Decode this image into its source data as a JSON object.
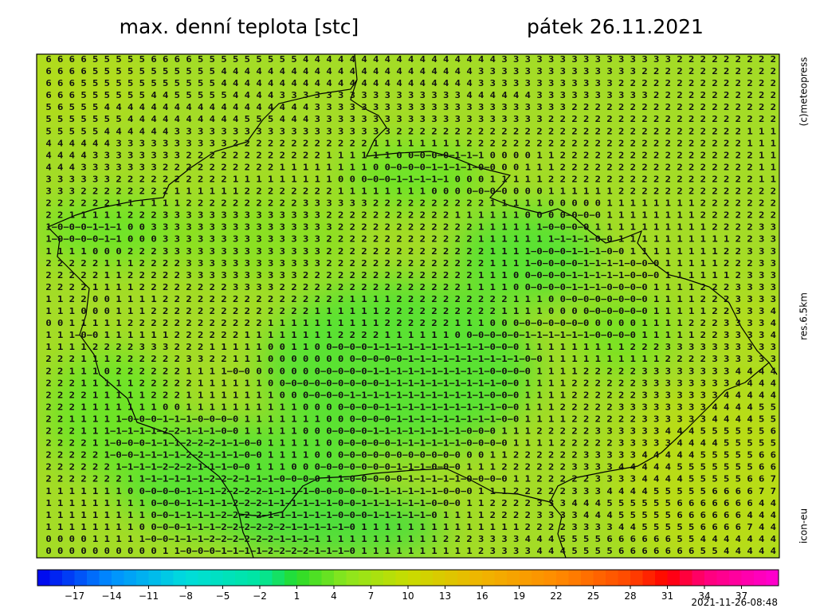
{
  "header": {
    "title": "max. denní teplota [stc]",
    "date": "pátek 26.11.2021"
  },
  "credits": {
    "source": "(c)meteopress",
    "resolution": "res.6.5km",
    "model": "icon-eu",
    "timestamp": "2021-11-26-08:48"
  },
  "grid": {
    "rows": [
      " 6 6 6 6 5 5 5 5 5 6 6 6 6 5 5 5 5 5 5 5 5 5 4 4 4 4 4 4 4 4 4 4 4 4 4 4 4 4 4 3 3 3 3 3 3 3 3 3 3 3 3 3 3 3 2 2 2 2 2 2 2 2 2",
      " 6 6 6 6 5 5 5 5 5 5 5 5 5 5 5 4 4 4 4 4 4 4 4 4 4 4 4 4 4 4 4 4 4 4 4 4 4 3 3 3 3 3 3 3 3 3 3 3 3 3 3 2 2 2 2 2 2 2 2 2 2 2 2",
      " 6 6 6 5 5 5 5 5 5 5 5 5 5 5 5 4 4 4 4 4 4 4 4 4 4 4 4 4 4 4 4 4 4 4 4 4 4 3 3 3 3 3 3 3 3 3 3 3 3 2 2 2 2 2 2 2 2 2 2 2 2 2 2",
      " 6 6 6 5 5 5 5 5 5 4 4 5 5 5 5 5 4 4 4 4 3 3 3 3 3 3 3 3 3 3 3 3 3 3 3 3 4 4 4 4 4 4 3 3 3 3 3 3 3 3 3 3 2 2 2 2 2 2 2 2 2 2 2",
      " 5 6 5 5 5 4 4 4 4 4 4 4 4 4 4 4 4 4 4 4 4 4 4 3 3 3 3 3 3 3 3 3 3 3 3 3 3 3 3 3 3 3 3 3 3 2 2 2 2 2 2 2 2 2 2 2 2 2 2 2 2 2 2",
      " 5 5 5 5 5 5 5 4 4 4 4 4 4 4 4 4 4 5 5 5 4 4 4 3 3 3 3 3 3 3 3 3 3 3 3 3 3 3 3 3 3 3 3 2 2 2 2 2 2 2 2 2 2 2 2 2 2 2 2 2 2 2 2",
      " 5 5 5 5 5 4 4 4 4 4 4 3 3 3 3 3 3 3 3 3 3 3 3 3 3 3 3 3 3 3 2 2 2 2 2 2 2 2 2 2 2 2 2 2 2 2 2 2 2 2 2 2 2 2 2 2 2 2 2 2 1 1 1",
      " 4 4 4 4 4 4 3 3 3 3 3 3 3 3 3 3 2 2 2 2 2 2 2 2 2 2 2 2 1 1 1 1 1 1 1 1 2 2 2 2 2 2 2 2 2 2 2 2 2 2 2 2 2 2 2 2 2 2 2 2 1 1 1",
      " 4 4 4 4 3 3 3 3 3 3 3 3 2 2 2 2 2 2 2 2 2 2 2 2 1 1 1 1 1 1 0 0−0−0−0−1−1−1 0 0 0 0 1 1 2 2 2 2 2 2 2 2 2 2 2 2 2 2 2 2 2 1 1",
      " 4 4 4 3 3 3 3 3 3 3 2 2 2 2 2 2 2 2 2 2 1 1 1 1 1 1 1 1 0 0−0−0−0−1−1−1−1−0−0 0 0 1 1 1 2 2 2 2 2 2 2 2 2 2 2 2 2 2 2 2 2 1 1",
      " 3 3 3 3 3 3 2 2 2 2 2 2 2 2 2 2 1 1 1 1 1 1 1 1 1 0 0 0−0−0−1−1−1−1−1 0 0 0 1 1 1 1 1 2 2 2 2 2 2 2 2 2 2 2 2 2 2 2 2 2 2 1 1",
      " 3 3 3 2 2 2 2 2 2 2 2 1 1 1 1 1 1 2 2 2 2 2 2 2 2 1 1 1 1 1 1 1 1 0 0 0 0−0−0−0 0 0 0 1 1 1 1 1 1 2 2 2 2 2 2 2 2 2 2 2 2 2 2",
      " 2 2 2 2 2 2 1 1 1 1 1 1 2 2 2 2 2 2 2 2 2 2 3 3 3 3 3 3 2 2 2 2 2 2 2 2 2 2 1 1 1 1 1 0 0 0 0 0 1 1 1 1 1 1 1 1 2 2 2 2 2 2 2",
      " 2 2 1 1 1 1 1 2 2 2 3 3 3 3 3 3 3 3 3 3 3 3 3 3 2 2 2 2 2 2 2 2 2 2 2 1 1 1 1 1 1 0 0 0 0−0−0−0 1 1 1 1 1 1 1 1 2 2 2 2 2 2 2",
      " 1−0−0−0−1−1−1 0 0 3 3 3 3 3 3 3 3 3 3 3 3 3 3 3 3 2 2 2 2 2 2 2 2 2 2 2 2 1 1 1 1 1 1−0−0−0−0 1 1 1 1 1 1 1 1 1 1 2 2 2 2 3 3",
      " 1−0−0−0−0−1−1 0 0 0 3 3 3 3 3 3 3 3 3 3 3 3 3 3 2 2 2 2 2 2 2 2 2 2 2 2 2 1 1 1 1 1 1 1−1−1−1−0−0 1 1 1 1 1 1 1 1 1 1 2 2 3 3",
      " 1 1 1 1 0 0 0 2 2 2 3 3 3 3 3 3 3 3 3 3 3 3 3 3 2 2 2 2 2 2 2 2 2 2 2 2 2 2 1 1 1 1−0−0−0−1−1−1−0−0 1 1 1 1 1 1 1 1 2 2 3 3 3",
      " 2 2 2 2 2 1 1 1 2 2 2 2 3 3 3 3 3 3 3 3 3 3 3 3 2 2 2 2 2 2 2 2 2 2 2 2 2 2 1 1 1 1−0−0−0−0−1−1−1−1−0−0−0 1 1 1 1 1 2 2 2 3 3",
      " 2 2 2 2 2 1 1 2 2 2 2 2 3 3 3 3 3 3 3 3 3 3 2 2 2 2 2 2 2 2 2 2 2 2 2 2 2 1 1 1 0 0−0−0−0−1−1−1−1−1−0−0−0 1 1 1 1 1 1 2 3 3 3",
      " 2 2 2 2 1 1 1 1 2 2 2 2 2 2 2 2 3 3 3 3 2 2 2 2 2 2 2 2 2 2 2 2 2 2 2 2 1 1 1 1 0 0−0−0−0−1−1−1−0−0−0−0 1 1 1 1 2 2 2 3 3 3 3",
      " 1 1 2 2 0 0 1 1 1 1 2 2 2 2 2 2 2 2 2 2 2 2 2 2 2 2 1 1 1 1 2 2 2 2 2 2 2 2 2 2 1 1 1 0 0−0−0−0−0−0−0−0 1 1 1 1 2 2 2 3 3 3 3",
      " 1 1 1 0 0 0 1 1 1 2 2 2 2 2 2 2 2 2 2 2 2 2 2 1 1 1 1 1 1 2 2 2 2 2 2 2 2 2 2 1 1 1 1 0 0 0 0−0−0−0−0−0 1 1 1 1 1 2 2 3 3 3 4",
      " 0 0 1 1 1 1 1 2 2 2 2 2 2 2 2 2 2 2 2 1 1 1 1 1 1 1 1 1 1 2 2 2 2 2 2 1 1 1 0 0 0−0−0−0−0−0−0 0 0 0 0 1 1 1 1 2 2 2 3 3 3 3 4",
      " 1 1 1−0−0 1 1 1 1 1 1 2 2 2 2 2 2 1 1 1 1 1 1 1 1 2 2 2 2 1 1 1 1 1 1 0 0−0−0−0−0−1−1−1−1−1−1−0−0−0−0 1 1 1 1 1 2 2 3 3 3 3 4",
      " 1 1 1 1 2 2 2 2 3 3 3 2 2 2 1 1 1 1 1 0 0 1 1 0 0−0−0−0−1−1−1−1−1−1−1−1−1−1−0−0−0 1 1 1 1 1 1 1 1 1 2 2 2 3 3 3 3 3 3 3 3 3 3",
      " 2 2 2 1 1 1 2 2 2 2 2 2 3 3 2 2 1 1 1 0 0 0 0 0 0 0 0−0−0−0−0−1−1−1−1−1−1−1−1−1−1−0−0 1 1 1 1 1 1 1 1 1 1 2 2 2 2 3 3 3 3 3 3",
      " 2 2 1 1 1 0 2 2 2 2 2 2 1 1 1 1−0−0 0 0 0 0 0 0−0−0−0−0−1−1−1−1−1−1−1−1−1−1−0−0−0−0 1 1 1 1 2 2 2 2 2 3 3 3 3 3 3 3 3 4 4 4 4",
      " 2 2 2 1 1 1 1 1 2 2 2 2 2 1 1 1 1 1 1 0 0−0−0−0−0−0−0−0−0−1−1−1−1−1−1−1−1−1−1−0−0 1 1 1 1 2 2 2 2 2 2 3 3 3 3 3 3 3 3 4 4 4 4",
      " 2 2 2 2 1 1 1 1 1 2 2 2 1 1 1 1 1 1 1 1 0 0 0−0−0−0−1−1−1−1−1−1−1−1−1−1−1−1−0−0−0 1 1 1 1 2 2 2 2 2 2 3 3 3 3 3 3 3 4 4 4 4 4",
      " 2 2 2 1 1 1 1 1 1 1 0 0 1 1 1 1 1 1 1 1 1 1 0 0 0 0−0−0−0−1−1−1−1−1−1−1−1−1−1−0−0 1 1 1 2 2 2 2 2 3 3 3 3 3 3 3 3 4 4 4 4 5 5",
      " 2 2 1 1 1 1 1−0−0−0−1−1−1−0−0−0−0 1 1 1 1 1 1 1 0 0 0−0−0−0−1−1−1−1−1−1−1−1−1−0−0 1 1 1 1 2 2 2 2 2 2 3 3 3 3 3 3 4 4 4 4 5 5",
      " 2 2 2 1 1 1−1−1−1−1−2−2−1−1−1−0−0 1 1 1 1 1 0 0 0−0−0−0−1−1−1−1−1−1−1−1−0−0−0 1 1 1 2 2 2 2 2 3 3 3 3 3 3 4 4 4 5 5 5 5 5 5 6",
      " 2 2 2 2 1 1−0−0−0−1−1−1−2−2−2−1−1−0−0 1 1 1 1 1 0 0−0−0−0−0−1−1−1−1−1−1−0−0−0−0 1 1 1 1 2 2 2 2 2 3 3 3 3 3 4 4 4 4 5 5 5 5 5",
      " 2 2 2 2 2 1−0−0−1−1−1−1−2−2−1−1−1−0−0 1 1 1 1 0 0 0−0−0−0−0−0−0−0−0−0−0 0 0 1 1 2 2 2 2 2 2 3 3 3 3 3 4 4 4 4 4 5 5 5 5 5 6 6",
      " 2 2 2 2 2 2 1−1−1−1−2−2−2−1−1−1−0−0 1 1 1 0 0 0−0−0−0−0−0−0−1−1−1−0−0−0 1 1 1 2 2 2 2 2 2 3 3 3 3 4 4 4 4 4 5 5 5 5 5 5 5 6 6",
      " 2 2 2 2 2 2 2 1 1−1−1−1−1−1−2−2−2−1−1−1−0−0−0−0 1 1−0−0−0−0−0−1−1−1−1−1−0−0−0−0 1 1 2 2 2 2 2 3 3 3 3 4 4 4 4 5 5 5 5 5 6 6 7",
      " 1 1 1 1 1 1 1 0 0−0−0−0−1−1−1−2−2−2−2−1−1−1−1−0−0−0−0−0−1−1−1−1−1−1−0−0−0 1 1 1 2 2 2 2 2 3 3 3 4 4 4 4 5 5 5 5 5 6 6 6 6 7 7",
      " 1 1 1 1 1 1 1 1 1 0−0−0−1−1−1−1−2−2−2−1−1−1−1−1−1−0−0−1−1−1−1−1−1−0−0−0 1 1 2 2 2 2 3 3 3 4 4 4 5 5 5 5 5 5 6 6 6 6 6 6 6 4 4",
      " 1 1 1 1 1 1 1 1 1 0−0−1−1−1−1−2−2−2−2−1−1−1−1−1−1−0−0−0−1−1−1−1−1−0 1 1 1 1 2 2 2 2 3 3 3 3 4 4 4 5 5 5 5 5 6 6 6 6 6 6 4 4 4",
      " 1 1 1 1 1 1 1 1 0 0−0−0−1−1−1−2−2−2−2−2−2−1−1−1−1−1−0 1 1 1 1 1 1 1 1 1 1 1 1 1 1 2 2 2 2 3 3 3 3 4 4 5 5 5 5 5 6 6 6 6 7 4 4",
      " 0 0 0 0 1 1 1 1 1−0−0−1−1−1−2−2−2−2−2−2−1−1−1−1 1 1 1 1 1 1 1 1 1 1 2 2 2 3 3 3 3 4 4 4 5 5 5 5 6 6 6 6 6 6 5 5 4 4 4 4 4 4 4",
      " 0 0 0 0 0 0 0 0 0 0 1 1−0−0−0−1−1−1−1−2−2−2−2−1−1−1−0 1 1 1 1 1 1 1 1 1 1 2 3 3 3 3 4 4 4 5 5 5 5 6 6 6 6 6 6 6 5 5 4 4 4 4 4"
    ]
  },
  "colorbar": {
    "range": [
      -20,
      40
    ],
    "stops": [
      [
        -20,
        "#0000ee"
      ],
      [
        -14,
        "#0090ff"
      ],
      [
        -8,
        "#00dcdc"
      ],
      [
        -2,
        "#00e6a0"
      ],
      [
        1,
        "#28dc28"
      ],
      [
        5,
        "#8ce61e"
      ],
      [
        10,
        "#c8dc00"
      ],
      [
        16,
        "#f0b400"
      ],
      [
        22,
        "#ff8c00"
      ],
      [
        28,
        "#ff4600"
      ],
      [
        31,
        "#ff0000"
      ],
      [
        34,
        "#ff0078"
      ],
      [
        40,
        "#ff00d2"
      ]
    ],
    "ticks": [
      {
        "value": -17,
        "label": "−17"
      },
      {
        "value": -14,
        "label": "−14"
      },
      {
        "value": -11,
        "label": "−11"
      },
      {
        "value": -8,
        "label": "−8"
      },
      {
        "value": -5,
        "label": "−5"
      },
      {
        "value": -2,
        "label": "−2"
      },
      1,
      4,
      7,
      10,
      13,
      16,
      19,
      22,
      25,
      28,
      31,
      34,
      37
    ]
  }
}
